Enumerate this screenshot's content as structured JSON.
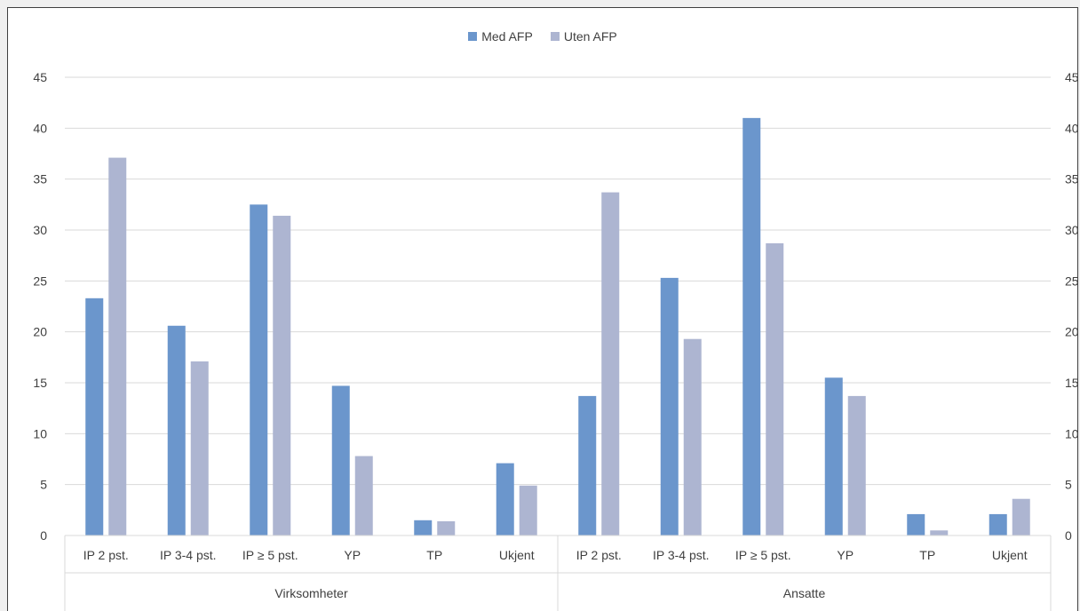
{
  "chart_data": {
    "type": "bar",
    "title": "",
    "xlabel": "",
    "ylabel": "",
    "ylim": [
      0,
      45
    ],
    "yticks": [
      0,
      5,
      10,
      15,
      20,
      25,
      30,
      35,
      40,
      45
    ],
    "grid": true,
    "legend_position": "top-center",
    "groups": [
      {
        "label": "Virksomheter",
        "categories": [
          "IP 2 pst.",
          "IP 3-4 pst.",
          "IP ≥ 5 pst.",
          "YP",
          "TP",
          "Ukjent"
        ]
      },
      {
        "label": "Ansatte",
        "categories": [
          "IP 2 pst.",
          "IP 3-4 pst.",
          "IP ≥ 5 pst.",
          "YP",
          "TP",
          "Ukjent"
        ]
      }
    ],
    "series": [
      {
        "name": "Med AFP",
        "color": "#6b96cc",
        "values": [
          23.3,
          20.6,
          32.5,
          14.7,
          1.5,
          7.1,
          13.7,
          25.3,
          41.0,
          15.5,
          2.1,
          2.1
        ]
      },
      {
        "name": "Uten AFP",
        "color": "#adb5d1",
        "values": [
          37.1,
          17.1,
          31.4,
          7.8,
          1.4,
          4.9,
          33.7,
          19.3,
          28.7,
          13.7,
          0.5,
          3.6
        ]
      }
    ]
  }
}
